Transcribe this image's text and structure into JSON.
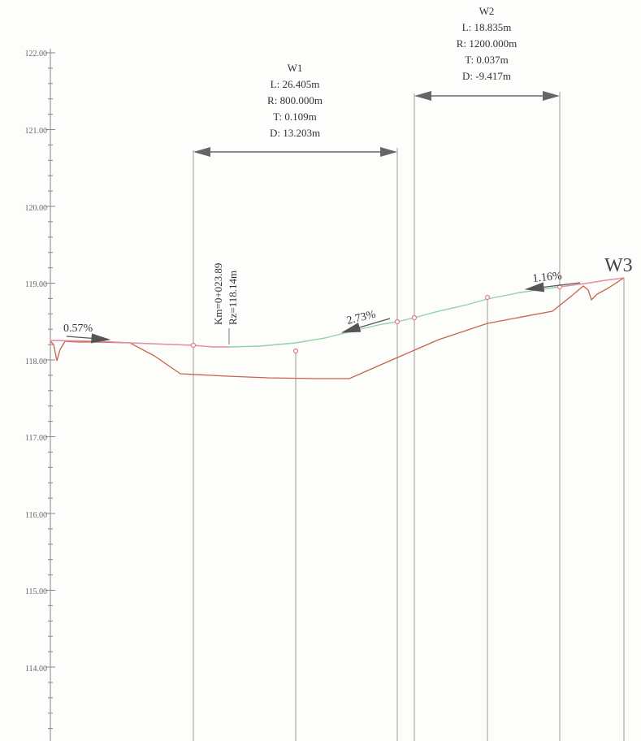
{
  "axis": {
    "ticks": [
      "122.00",
      "121.00",
      "120.00",
      "119.00",
      "118.00",
      "117.00",
      "116.00",
      "115.00",
      "114.00"
    ]
  },
  "curves": {
    "w1": {
      "name": "W1",
      "length": "L: 26.405m",
      "radius": "R: 800.000m",
      "tangent": "T: 0.109m",
      "d": "D: 13.203m"
    },
    "w2": {
      "name": "W2",
      "length": "L: 18.835m",
      "radius": "R: 1200.000m",
      "tangent": "T: 0.037m",
      "d": "D: -9.417m"
    },
    "w3": {
      "name": "W3"
    }
  },
  "station_label": {
    "km": "Km=0+023.89",
    "rz": "Rz=118.14m"
  },
  "grades": {
    "g1": "0.57%",
    "g2": "2.73%",
    "g3": "1.16%"
  },
  "colors": {
    "design_line": "#e48aa0",
    "design_line_green": "#8fd3a6",
    "ground_line": "#c9624a",
    "axis": "#888888",
    "guide": "#9a9a9a",
    "arrow": "#666666"
  }
}
